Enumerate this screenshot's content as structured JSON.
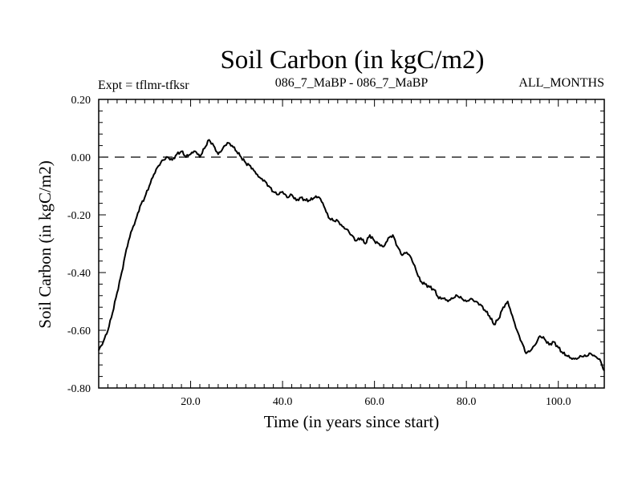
{
  "chart_data": {
    "type": "line",
    "title": "Soil Carbon (in kgC/m2)",
    "subtitle_left": "Expt = tflmr-tfksr",
    "subtitle_center": "086_7_MaBP - 086_7_MaBP",
    "subtitle_right": "ALL_MONTHS",
    "xlabel": "Time (in years since start)",
    "ylabel": "Soil Carbon (in kgC/m2)",
    "xlim": [
      0,
      110
    ],
    "ylim": [
      -0.8,
      0.2
    ],
    "x_ticks": [
      20,
      40,
      60,
      80,
      100
    ],
    "x_tick_labels": [
      "20.0",
      "40.0",
      "60.0",
      "80.0",
      "100.0"
    ],
    "y_ticks": [
      0.2,
      0.0,
      -0.2,
      -0.4,
      -0.6,
      -0.8
    ],
    "y_tick_labels": [
      "0.20",
      "0.00",
      "-0.20",
      "-0.40",
      "-0.60",
      "-0.80"
    ],
    "reference_line": {
      "y": 0.0,
      "style": "dashed"
    },
    "series": [
      {
        "name": "Soil Carbon",
        "x": [
          0,
          1,
          2,
          3,
          4,
          5,
          6,
          7,
          8,
          9,
          10,
          11,
          12,
          13,
          14,
          15,
          16,
          17,
          18,
          19,
          20,
          21,
          22,
          23,
          24,
          25,
          26,
          27,
          28,
          29,
          30,
          31,
          32,
          33,
          34,
          35,
          36,
          37,
          38,
          39,
          40,
          41,
          42,
          43,
          44,
          45,
          46,
          47,
          48,
          49,
          50,
          51,
          52,
          53,
          54,
          55,
          56,
          57,
          58,
          59,
          60,
          61,
          62,
          63,
          64,
          65,
          66,
          67,
          68,
          69,
          70,
          71,
          72,
          73,
          74,
          75,
          76,
          77,
          78,
          79,
          80,
          81,
          82,
          83,
          84,
          85,
          86,
          87,
          88,
          89,
          90,
          91,
          92,
          93,
          94,
          95,
          96,
          97,
          98,
          99,
          100,
          101,
          102,
          103,
          104,
          105,
          106,
          107,
          108,
          109,
          110
        ],
        "values": [
          -0.67,
          -0.64,
          -0.6,
          -0.54,
          -0.47,
          -0.4,
          -0.32,
          -0.26,
          -0.22,
          -0.17,
          -0.14,
          -0.1,
          -0.06,
          -0.03,
          -0.01,
          0.0,
          -0.01,
          0.01,
          0.02,
          0.0,
          0.01,
          0.02,
          0.0,
          0.03,
          0.06,
          0.04,
          0.01,
          0.03,
          0.05,
          0.04,
          0.02,
          0.0,
          -0.02,
          -0.03,
          -0.05,
          -0.07,
          -0.08,
          -0.1,
          -0.12,
          -0.13,
          -0.12,
          -0.14,
          -0.13,
          -0.15,
          -0.14,
          -0.15,
          -0.15,
          -0.14,
          -0.14,
          -0.17,
          -0.21,
          -0.22,
          -0.22,
          -0.24,
          -0.25,
          -0.27,
          -0.29,
          -0.28,
          -0.3,
          -0.27,
          -0.29,
          -0.3,
          -0.31,
          -0.28,
          -0.27,
          -0.31,
          -0.34,
          -0.33,
          -0.35,
          -0.39,
          -0.43,
          -0.44,
          -0.45,
          -0.46,
          -0.49,
          -0.49,
          -0.5,
          -0.49,
          -0.48,
          -0.49,
          -0.5,
          -0.49,
          -0.5,
          -0.51,
          -0.53,
          -0.55,
          -0.58,
          -0.56,
          -0.52,
          -0.5,
          -0.55,
          -0.6,
          -0.64,
          -0.68,
          -0.67,
          -0.65,
          -0.62,
          -0.63,
          -0.65,
          -0.64,
          -0.66,
          -0.68,
          -0.69,
          -0.7,
          -0.7,
          -0.69,
          -0.69,
          -0.68,
          -0.69,
          -0.7,
          -0.74
        ]
      }
    ]
  }
}
